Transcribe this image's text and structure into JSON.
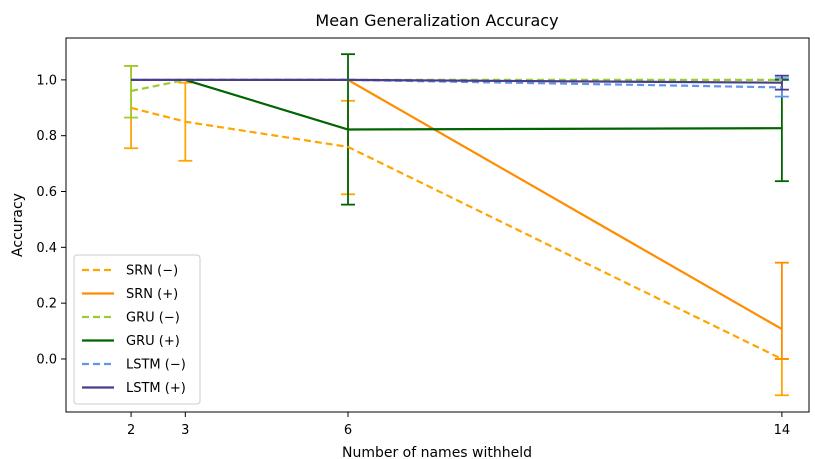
{
  "chart_data": {
    "type": "line",
    "title": "Mean Generalization Accuracy",
    "xlabel": "Number of names withheld",
    "ylabel": "Accuracy",
    "x": [
      2,
      3,
      6,
      14
    ],
    "xticks": [
      "2",
      "3",
      "6",
      "14"
    ],
    "xlim": [
      0.8,
      14.5
    ],
    "yticks": [
      "0.0",
      "0.2",
      "0.4",
      "0.6",
      "0.8",
      "1.0"
    ],
    "ytick_values": [
      0.0,
      0.2,
      0.4,
      0.6,
      0.8,
      1.0
    ],
    "ylim": [
      -0.19,
      1.15
    ],
    "grid": false,
    "legend_position": "lower-left",
    "series": [
      {
        "name": "SRN (−)",
        "color": "#ffa500",
        "style": "dashed",
        "values": [
          0.9,
          0.85,
          0.76,
          0.0
        ],
        "error": [
          {
            "x": 2,
            "low": 0.755,
            "high": 1.05
          },
          {
            "x": 3,
            "low": 0.71,
            "high": 0.99
          },
          {
            "x": 6,
            "low": 0.59,
            "high": 0.925
          },
          {
            "x": 14,
            "low": -0.13,
            "high": 0.0
          }
        ]
      },
      {
        "name": "SRN (+)",
        "color": "#ff8c00",
        "style": "solid",
        "values": [
          null,
          null,
          1.0,
          0.107
        ],
        "error": [
          {
            "x": 14,
            "low": 0.0,
            "high": 0.345
          }
        ]
      },
      {
        "name": "GRU (−)",
        "color": "#9acd32",
        "style": "dashed",
        "values": [
          0.96,
          1.0,
          1.0,
          1.0
        ],
        "error": [
          {
            "x": 2,
            "low": 0.865,
            "high": 1.05
          }
        ]
      },
      {
        "name": "GRU (+)",
        "color": "#006400",
        "style": "solid",
        "values": [
          null,
          1.0,
          0.822,
          0.827
        ],
        "error": [
          {
            "x": 6,
            "low": 0.553,
            "high": 1.092
          },
          {
            "x": 14,
            "low": 0.637,
            "high": 1.0
          }
        ]
      },
      {
        "name": "LSTM (−)",
        "color": "#6495ed",
        "style": "dashed",
        "values": [
          1.0,
          1.0,
          1.0,
          0.973
        ],
        "error": [
          {
            "x": 14,
            "low": 0.94,
            "high": 1.006
          }
        ]
      },
      {
        "name": "LSTM (+)",
        "color": "#483d8b",
        "style": "solid",
        "values": [
          1.0,
          1.0,
          1.0,
          0.99
        ],
        "error": [
          {
            "x": 14,
            "low": 0.965,
            "high": 1.015
          }
        ]
      }
    ]
  }
}
